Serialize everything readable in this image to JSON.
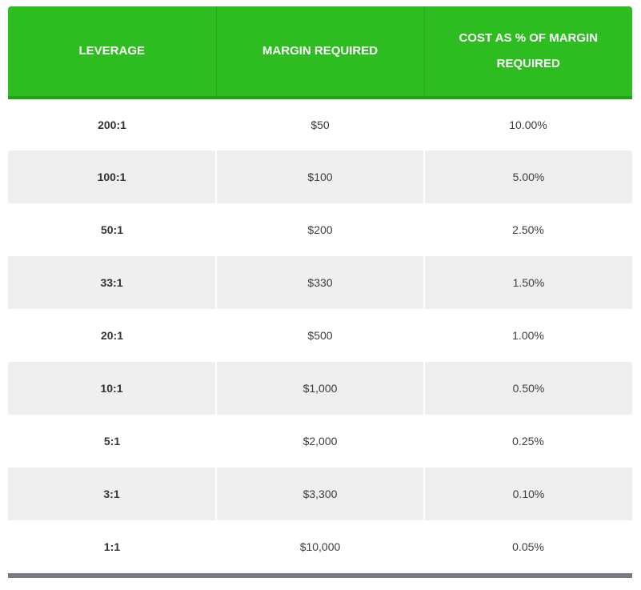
{
  "table": {
    "headers": [
      "LEVERAGE",
      "MARGIN REQUIRED",
      "COST AS % OF MARGIN REQUIRED"
    ],
    "rows": [
      {
        "leverage": "200:1",
        "margin": "$50",
        "cost": "10.00%"
      },
      {
        "leverage": "100:1",
        "margin": "$100",
        "cost": "5.00%"
      },
      {
        "leverage": "50:1",
        "margin": "$200",
        "cost": "2.50%"
      },
      {
        "leverage": "33:1",
        "margin": "$330",
        "cost": "1.50%"
      },
      {
        "leverage": "20:1",
        "margin": "$500",
        "cost": "1.00%"
      },
      {
        "leverage": "10:1",
        "margin": "$1,000",
        "cost": "0.50%"
      },
      {
        "leverage": "5:1",
        "margin": "$2,000",
        "cost": "0.25%"
      },
      {
        "leverage": "3:1",
        "margin": "$3,300",
        "cost": "0.10%"
      },
      {
        "leverage": "1:1",
        "margin": "$10,000",
        "cost": "0.05%"
      }
    ]
  },
  "colors": {
    "header_bg": "#2dbd20",
    "header_text": "#ffffff",
    "stripe_bg": "#efefef",
    "bottom_bar": "#777b84"
  }
}
